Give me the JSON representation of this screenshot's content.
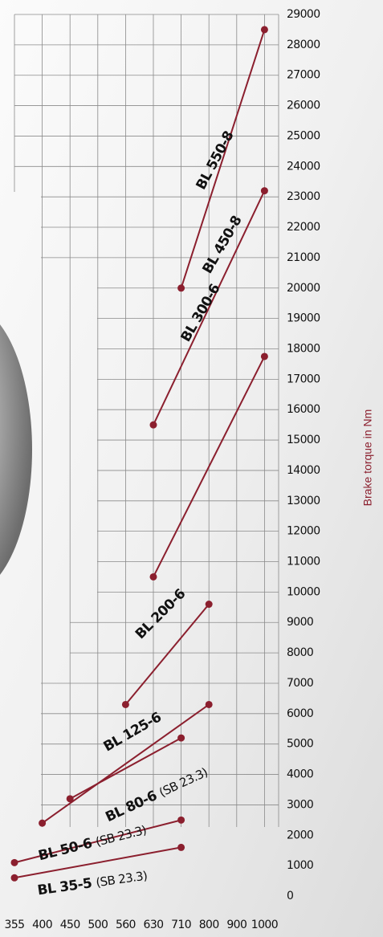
{
  "chart_data": {
    "type": "line",
    "y_label": "Brake torque in Nm",
    "categories": [
      "355",
      "400",
      "450",
      "500",
      "560",
      "630",
      "710",
      "800",
      "900",
      "1000"
    ],
    "ylim": [
      0,
      29000
    ],
    "yticks": [
      0,
      1000,
      2000,
      3000,
      4000,
      5000,
      6000,
      7000,
      8000,
      9000,
      10000,
      11000,
      12000,
      13000,
      14000,
      15000,
      16000,
      17000,
      18000,
      19000,
      20000,
      21000,
      22000,
      23000,
      24000,
      25000,
      26000,
      27000,
      28000,
      29000
    ],
    "grid": true,
    "series": [
      {
        "name": "BL 550-8",
        "color": "#8b1f2e",
        "values": [
          null,
          null,
          null,
          null,
          null,
          null,
          20000,
          null,
          null,
          28500
        ]
      },
      {
        "name": "BL 450-8",
        "color": "#8b1f2e",
        "values": [
          null,
          null,
          null,
          null,
          null,
          15500,
          null,
          null,
          null,
          23200
        ]
      },
      {
        "name": "BL 300-6",
        "color": "#8b1f2e",
        "values": [
          null,
          null,
          null,
          null,
          null,
          10500,
          null,
          null,
          null,
          17750
        ]
      },
      {
        "name": "BL 200-6",
        "color": "#8b1f2e",
        "values": [
          null,
          null,
          null,
          null,
          6300,
          null,
          null,
          9600,
          null,
          null
        ]
      },
      {
        "name": "BL 125-6",
        "color": "#8b1f2e",
        "values": [
          null,
          2400,
          null,
          null,
          null,
          null,
          null,
          6300,
          null,
          null
        ]
      },
      {
        "name": "BL 80-6",
        "color": "#8b1f2e",
        "note": "(SB 23.3)",
        "values": [
          null,
          null,
          3200,
          null,
          null,
          null,
          5200,
          null,
          null,
          null
        ]
      },
      {
        "name": "BL 50-6",
        "color": "#8b1f2e",
        "note": "(SB 23.3)",
        "values": [
          1100,
          null,
          null,
          null,
          null,
          null,
          2500,
          null,
          null,
          null
        ]
      },
      {
        "name": "BL 35-5",
        "color": "#8b1f2e",
        "note": "(SB 23.3)",
        "values": [
          600,
          null,
          null,
          null,
          null,
          null,
          1600,
          null,
          null,
          null
        ]
      }
    ]
  }
}
